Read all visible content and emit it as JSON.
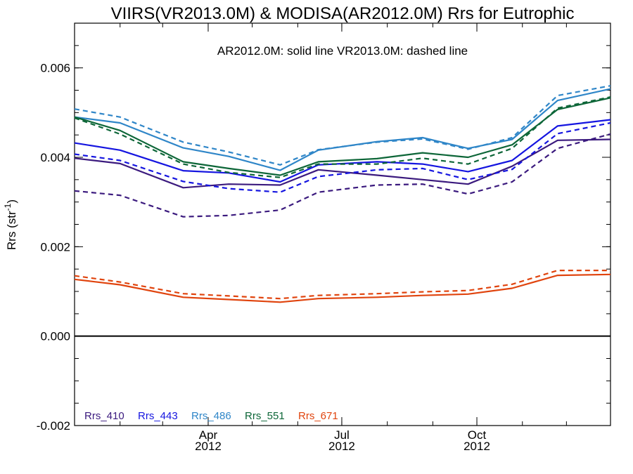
{
  "chart_data": {
    "type": "line",
    "title": "VIIRS(VR2013.0M) & MODISA(AR2012.0M)  Rrs for Eutrophic",
    "annotation": "AR2012.0M: solid line   VR2013.0M: dashed line",
    "ylabel_main": "Rrs (str",
    "ylabel_sup": "-1",
    "ylabel_end": ")",
    "ylim": [
      -0.002,
      0.007
    ],
    "yticks": [
      "-0.002",
      "0.000",
      "0.002",
      "0.004",
      "0.006"
    ],
    "xlim": [
      "2012-01-01",
      "2012-12-31"
    ],
    "xticks": [
      {
        "month": "Apr",
        "year": "2012",
        "date": "2012-04-01"
      },
      {
        "month": "Jul",
        "year": "2012",
        "date": "2012-07-01"
      },
      {
        "month": "Oct",
        "year": "2012",
        "date": "2012-10-01"
      }
    ],
    "zero_line": true,
    "x": [
      "2012-01-01",
      "2012-02-01",
      "2012-03-15",
      "2012-04-15",
      "2012-05-20",
      "2012-06-15",
      "2012-07-25",
      "2012-08-25",
      "2012-09-25",
      "2012-10-25",
      "2012-11-25",
      "2012-12-31"
    ],
    "series": [
      {
        "name": "Rrs_410",
        "variant": "solid",
        "color": "#3b1a7e",
        "values": [
          0.00398,
          0.00386,
          0.00332,
          0.0034,
          0.00338,
          0.00372,
          0.0036,
          0.0035,
          0.0034,
          0.0038,
          0.00438,
          0.0044
        ]
      },
      {
        "name": "Rrs_410",
        "variant": "dashed",
        "color": "#3b1a7e",
        "values": [
          0.00325,
          0.00315,
          0.00267,
          0.0027,
          0.00282,
          0.00322,
          0.00338,
          0.0034,
          0.00318,
          0.00345,
          0.0042,
          0.00452
        ]
      },
      {
        "name": "Rrs_443",
        "variant": "solid",
        "color": "#1515e0",
        "values": [
          0.00432,
          0.00416,
          0.0037,
          0.00365,
          0.00345,
          0.00383,
          0.0039,
          0.00385,
          0.00368,
          0.00393,
          0.0047,
          0.00484
        ]
      },
      {
        "name": "Rrs_443",
        "variant": "dashed",
        "color": "#1515e0",
        "values": [
          0.00407,
          0.00393,
          0.00346,
          0.0033,
          0.00322,
          0.00357,
          0.00372,
          0.00375,
          0.0035,
          0.00373,
          0.00453,
          0.00477
        ]
      },
      {
        "name": "Rrs_486",
        "variant": "solid",
        "color": "#2f86c8",
        "values": [
          0.0049,
          0.00477,
          0.00421,
          0.00402,
          0.00371,
          0.00416,
          0.00435,
          0.00444,
          0.0042,
          0.0044,
          0.00527,
          0.00553
        ]
      },
      {
        "name": "Rrs_486",
        "variant": "dashed",
        "color": "#2f86c8",
        "values": [
          0.00508,
          0.0049,
          0.00434,
          0.00412,
          0.00383,
          0.00417,
          0.00434,
          0.00441,
          0.00418,
          0.00444,
          0.00538,
          0.0056
        ]
      },
      {
        "name": "Rrs_551",
        "variant": "solid",
        "color": "#0d6638",
        "values": [
          0.0049,
          0.0046,
          0.0039,
          0.00375,
          0.0036,
          0.0039,
          0.00397,
          0.0041,
          0.004,
          0.00428,
          0.00507,
          0.00533
        ]
      },
      {
        "name": "Rrs_551",
        "variant": "dashed",
        "color": "#0d6638",
        "values": [
          0.00488,
          0.00452,
          0.00385,
          0.00366,
          0.00355,
          0.00385,
          0.00385,
          0.00398,
          0.00385,
          0.0042,
          0.0051,
          0.00535
        ]
      },
      {
        "name": "Rrs_671",
        "variant": "solid",
        "color": "#e0440e",
        "values": [
          0.00127,
          0.00115,
          0.00087,
          0.00082,
          0.00076,
          0.00084,
          0.00087,
          0.00091,
          0.00094,
          0.00107,
          0.00136,
          0.00138
        ]
      },
      {
        "name": "Rrs_671",
        "variant": "dashed",
        "color": "#e0440e",
        "values": [
          0.00135,
          0.00121,
          0.00095,
          0.0009,
          0.00084,
          0.00091,
          0.00095,
          0.00099,
          0.00102,
          0.00116,
          0.00147,
          0.00147
        ]
      }
    ],
    "legend": [
      {
        "label": "Rrs_410",
        "color": "#3b1a7e"
      },
      {
        "label": "Rrs_443",
        "color": "#1515e0"
      },
      {
        "label": "Rrs_486",
        "color": "#2f86c8"
      },
      {
        "label": "Rrs_551",
        "color": "#0d6638"
      },
      {
        "label": "Rrs_671",
        "color": "#e0440e"
      }
    ],
    "legend_placement": "bottom-left",
    "grid": false
  }
}
